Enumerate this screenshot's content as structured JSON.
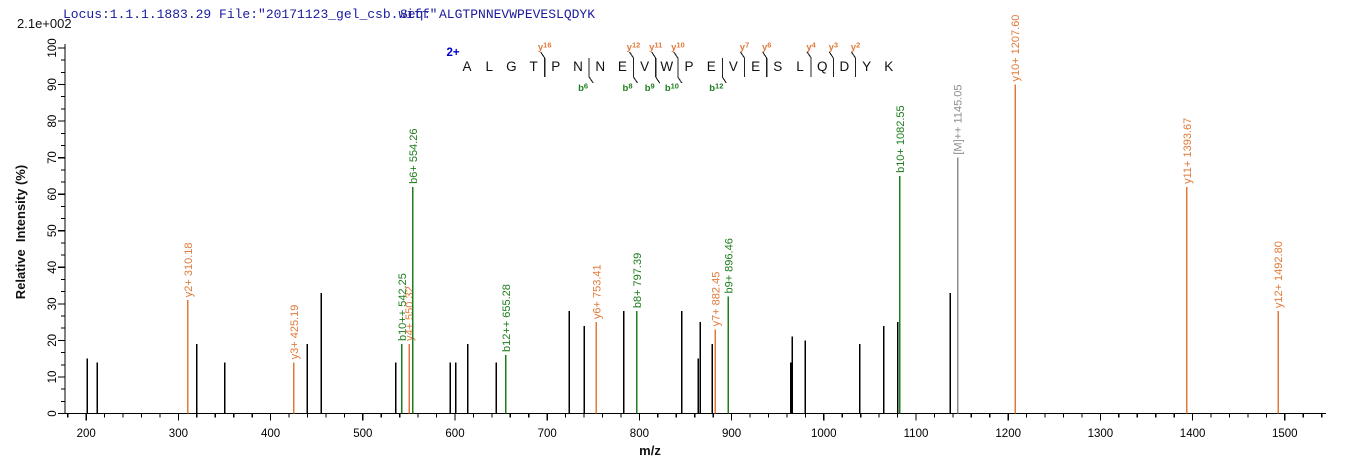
{
  "header": {
    "locus": "Locus:1.1.1.1883.29 File:\"20171123_gel_csb.wiff\"",
    "seq": "Seq: ALGTPNNEVWPEVESLQDYK"
  },
  "chart_data": {
    "type": "bar",
    "subtype": "ms2-mass-spectrum",
    "title": "",
    "xlabel": "m/z",
    "ylabel": "Relative  Intensity (%)",
    "intensity_scale": "2.1e+002",
    "xlim": [
      177,
      1544
    ],
    "ylim": [
      0,
      100
    ],
    "x_major_ticks": [
      200,
      300,
      400,
      500,
      600,
      700,
      800,
      900,
      1000,
      1100,
      1200,
      1300,
      1400,
      1500
    ],
    "x_minor_step": 20,
    "y_major_ticks": [
      0,
      10,
      20,
      30,
      40,
      50,
      60,
      70,
      80,
      90,
      100
    ],
    "grid": false,
    "precursor_charge": "2+",
    "sequence": "ALGTPNNEVWPEVESLQDYK",
    "y_ions": [
      {
        "name": "y16",
        "boundary": 4
      },
      {
        "name": "y12",
        "boundary": 8
      },
      {
        "name": "y11",
        "boundary": 9
      },
      {
        "name": "y10",
        "boundary": 10
      },
      {
        "name": "y7",
        "boundary": 13
      },
      {
        "name": "y6",
        "boundary": 14
      },
      {
        "name": "y4",
        "boundary": 16
      },
      {
        "name": "y3",
        "boundary": 17
      },
      {
        "name": "y2",
        "boundary": 18
      }
    ],
    "b_ions": [
      {
        "name": "b6",
        "boundary": 6
      },
      {
        "name": "b8",
        "boundary": 8
      },
      {
        "name": "b9",
        "boundary": 9
      },
      {
        "name": "b10",
        "boundary": 10
      },
      {
        "name": "b12",
        "boundary": 12
      }
    ],
    "peaks": [
      {
        "mz": 201,
        "pct": 15,
        "ion": "u"
      },
      {
        "mz": 212,
        "pct": 14,
        "ion": "u"
      },
      {
        "mz": 310.18,
        "pct": 31,
        "ion": "y",
        "label": "y2+ 310.18"
      },
      {
        "mz": 320,
        "pct": 19,
        "ion": "u"
      },
      {
        "mz": 350,
        "pct": 14,
        "ion": "u"
      },
      {
        "mz": 425.19,
        "pct": 14,
        "ion": "y",
        "label": "y3+ 425.19"
      },
      {
        "mz": 440,
        "pct": 19,
        "ion": "u"
      },
      {
        "mz": 455,
        "pct": 33,
        "ion": "u"
      },
      {
        "mz": 536,
        "pct": 14,
        "ion": "u"
      },
      {
        "mz": 542.25,
        "pct": 19,
        "ion": "b",
        "label": "b10++ 542.25"
      },
      {
        "mz": 550.32,
        "pct": 19,
        "ion": "y",
        "label": "y4+ 550.32"
      },
      {
        "mz": 554.26,
        "pct": 62,
        "ion": "b",
        "label": "b6+ 554.26"
      },
      {
        "mz": 595,
        "pct": 14,
        "ion": "u"
      },
      {
        "mz": 601,
        "pct": 14,
        "ion": "u"
      },
      {
        "mz": 614,
        "pct": 19,
        "ion": "u"
      },
      {
        "mz": 645,
        "pct": 14,
        "ion": "u"
      },
      {
        "mz": 655.28,
        "pct": 16,
        "ion": "b",
        "label": "b12++ 655.28"
      },
      {
        "mz": 724,
        "pct": 28,
        "ion": "u"
      },
      {
        "mz": 740,
        "pct": 24,
        "ion": "u"
      },
      {
        "mz": 753.41,
        "pct": 25,
        "ion": "y",
        "label": "y6+ 753.41"
      },
      {
        "mz": 783,
        "pct": 28,
        "ion": "u"
      },
      {
        "mz": 797.39,
        "pct": 28,
        "ion": "b",
        "label": "b8+ 797.39"
      },
      {
        "mz": 846,
        "pct": 28,
        "ion": "u"
      },
      {
        "mz": 864,
        "pct": 15,
        "ion": "u"
      },
      {
        "mz": 866,
        "pct": 25,
        "ion": "u"
      },
      {
        "mz": 879,
        "pct": 19,
        "ion": "u"
      },
      {
        "mz": 882.45,
        "pct": 23,
        "ion": "y",
        "label": "y7+ 882.45"
      },
      {
        "mz": 896.46,
        "pct": 32,
        "ion": "b",
        "label": "b9+ 896.46"
      },
      {
        "mz": 964,
        "pct": 14,
        "ion": "u"
      },
      {
        "mz": 966,
        "pct": 21,
        "ion": "u"
      },
      {
        "mz": 980,
        "pct": 20,
        "ion": "u"
      },
      {
        "mz": 1039,
        "pct": 19,
        "ion": "u"
      },
      {
        "mz": 1065,
        "pct": 24,
        "ion": "u"
      },
      {
        "mz": 1080,
        "pct": 25,
        "ion": "u"
      },
      {
        "mz": 1082.55,
        "pct": 65,
        "ion": "b",
        "label": "b10+ 1082.55"
      },
      {
        "mz": 1137,
        "pct": 33,
        "ion": "u"
      },
      {
        "mz": 1145.05,
        "pct": 70,
        "ion": "M",
        "label": "[M]++ 1145.05"
      },
      {
        "mz": 1207.6,
        "pct": 90,
        "ion": "y",
        "label": "y10+ 1207.60"
      },
      {
        "mz": 1393.67,
        "pct": 62,
        "ion": "y",
        "label": "y11+ 1393.67"
      },
      {
        "mz": 1492.8,
        "pct": 28,
        "ion": "y",
        "label": "y12+ 1492.80"
      }
    ],
    "colors": {
      "y_ion": "#e07a3a",
      "b_ion": "#1e7d1e",
      "precursor": "#8c8c8c",
      "unassigned": "#000000",
      "axis": "#000000",
      "header_text": "#1a1a9e",
      "charge_text": "#0000cd",
      "sequence_text": "#111111"
    }
  }
}
